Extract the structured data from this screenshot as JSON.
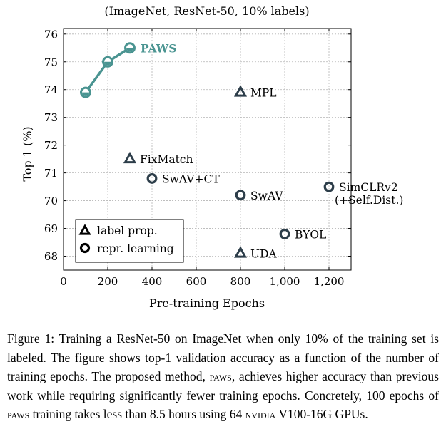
{
  "chart_data": {
    "type": "scatter",
    "title": "(ImageNet, ResNet-50, 10% labels)",
    "xlabel": "Pre-training Epochs",
    "ylabel": "Top 1 (%)",
    "xlim": [
      0,
      1300
    ],
    "ylim": [
      67.5,
      76.2
    ],
    "xticks": [
      0,
      200,
      400,
      600,
      800,
      1000,
      1200
    ],
    "xtick_labels": [
      "0",
      "200",
      "400",
      "600",
      "800",
      "1,000",
      "1,200"
    ],
    "yticks": [
      68,
      69,
      70,
      71,
      72,
      73,
      74,
      75,
      76
    ],
    "ytick_labels": [
      "68",
      "69",
      "70",
      "71",
      "72",
      "73",
      "74",
      "75",
      "76"
    ],
    "grid": true,
    "series": [
      {
        "name": "PAWS",
        "kind": "line",
        "color": "#4a9491",
        "x": [
          100,
          200,
          300
        ],
        "y": [
          73.9,
          75.0,
          75.5
        ]
      }
    ],
    "points": [
      {
        "name": "MPL",
        "label": "MPL",
        "x": 800,
        "y": 73.9,
        "marker": "triangle"
      },
      {
        "name": "FixMatch",
        "label": "FixMatch",
        "x": 300,
        "y": 71.5,
        "marker": "triangle"
      },
      {
        "name": "SwAV+CT",
        "label": "SwAV+CT",
        "x": 400,
        "y": 70.8,
        "marker": "circle"
      },
      {
        "name": "SwAV",
        "label": "SwAV",
        "x": 800,
        "y": 70.2,
        "marker": "circle"
      },
      {
        "name": "SimCLRv2",
        "label": "SimCLRv2",
        "label2": "(+Self.Dist.)",
        "x": 1200,
        "y": 70.5,
        "marker": "circle"
      },
      {
        "name": "BYOL",
        "label": "BYOL",
        "x": 1000,
        "y": 68.8,
        "marker": "circle"
      },
      {
        "name": "UDA",
        "label": "UDA",
        "x": 800,
        "y": 68.1,
        "marker": "triangle"
      }
    ],
    "legend": {
      "placement": "bottom-left",
      "entries": [
        {
          "label": "label prop.",
          "marker": "triangle"
        },
        {
          "label": "repr. learning",
          "marker": "circle"
        }
      ]
    },
    "colors": {
      "baseline": "#2d3e4a",
      "paws": "#4a9491"
    }
  },
  "caption": {
    "prefix": "Figure 1:",
    "part1": " Training a ResNet-50 on ImageNet when only 10% of the training set is labeled. The figure shows top-1 validation accuracy as a function of the number of training epochs. The proposed method, ",
    "method1": "paws",
    "part2": ", achieves higher accuracy than previous work while requiring significantly fewer training epochs. Concretely, 100 epochs of ",
    "method2": "paws",
    "part3": " training takes less than 8.5 hours using 64 ",
    "vendor": "nvidia",
    "part4": " V100-16G GPUs."
  }
}
